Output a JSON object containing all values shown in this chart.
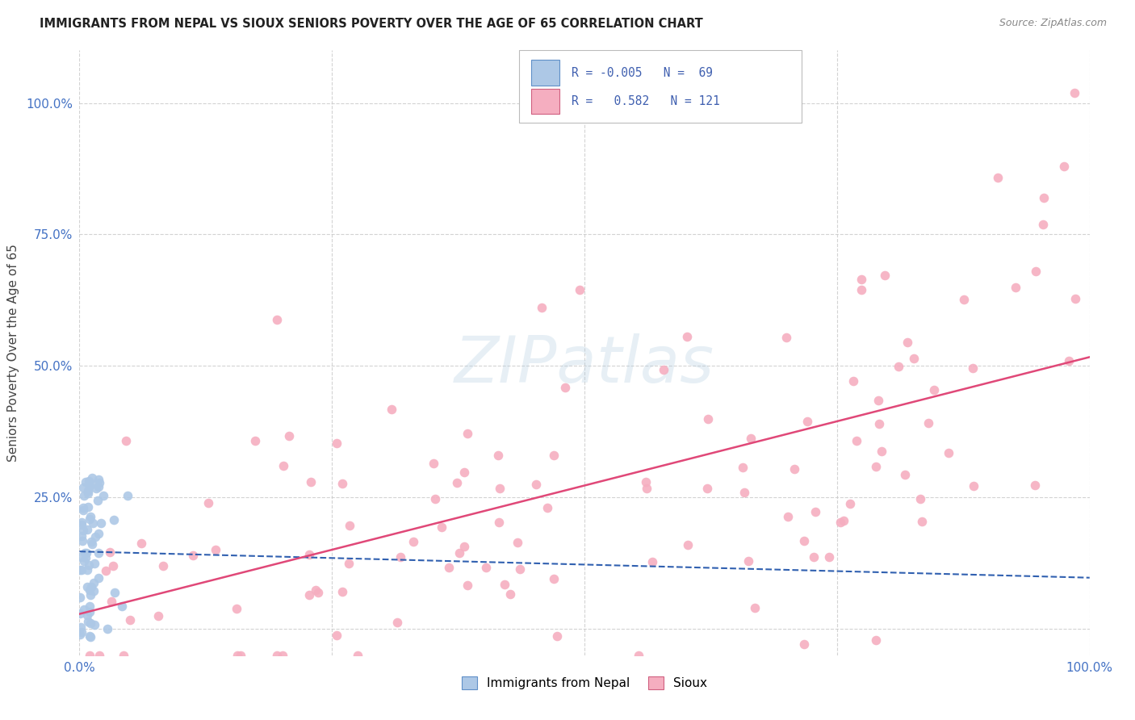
{
  "title": "IMMIGRANTS FROM NEPAL VS SIOUX SENIORS POVERTY OVER THE AGE OF 65 CORRELATION CHART",
  "source": "Source: ZipAtlas.com",
  "ylabel": "Seniors Poverty Over the Age of 65",
  "xlim": [
    0,
    1.0
  ],
  "ylim": [
    -0.05,
    1.1
  ],
  "nepal_R": -0.005,
  "nepal_N": 69,
  "sioux_R": 0.582,
  "sioux_N": 121,
  "nepal_color": "#adc8e6",
  "sioux_color": "#f5aec0",
  "nepal_line_color": "#3060b0",
  "sioux_line_color": "#e04878",
  "background_color": "#ffffff"
}
